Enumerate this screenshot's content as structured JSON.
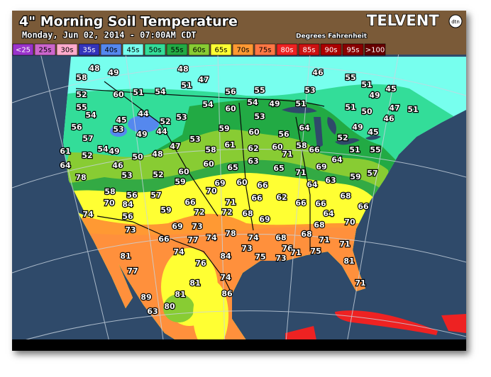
{
  "header": {
    "title": "4\" Morning Soil Temperature",
    "subtitle": "Monday, Jun 02, 2014 - 07:00AM CDT",
    "units": "Degrees Fahrenheit",
    "brand": "TELVENT",
    "brand_badge": "dtn"
  },
  "legend": [
    {
      "label": "<25",
      "color": "#9a33cc"
    },
    {
      "label": "25s",
      "color": "#cc66cc"
    },
    {
      "label": "30s",
      "color": "#ffaacc"
    },
    {
      "label": "35s",
      "color": "#3333bb"
    },
    {
      "label": "40s",
      "color": "#5588ee"
    },
    {
      "label": "45s",
      "color": "#77ffee"
    },
    {
      "label": "50s",
      "color": "#33dd99"
    },
    {
      "label": "55s",
      "color": "#22aa44"
    },
    {
      "label": "60s",
      "color": "#88cc33"
    },
    {
      "label": "65s",
      "color": "#ffff33"
    },
    {
      "label": "70s",
      "color": "#ff9933"
    },
    {
      "label": "75s",
      "color": "#ff7744"
    },
    {
      "label": "80s",
      "color": "#ee2222"
    },
    {
      "label": "85s",
      "color": "#cc1111"
    },
    {
      "label": "90s",
      "color": "#aa0000"
    },
    {
      "label": "95s",
      "color": "#880000"
    },
    {
      "label": ">100",
      "color": "#660000"
    }
  ],
  "readings": [
    48,
    49,
    48,
    47,
    51,
    46,
    55,
    51,
    53,
    56,
    55,
    49,
    45,
    54,
    51,
    60,
    58,
    52,
    55,
    54,
    54,
    60,
    54,
    49,
    51,
    51,
    50,
    47,
    51,
    44,
    52,
    53,
    45,
    53,
    44,
    49,
    56,
    59,
    60,
    56,
    64,
    53,
    46,
    49,
    52,
    45,
    53,
    57,
    54,
    49,
    50,
    48,
    47,
    58,
    61,
    62,
    60,
    71,
    58,
    66,
    51,
    55,
    61,
    52,
    64,
    46,
    53,
    52,
    60,
    60,
    65,
    63,
    65,
    71,
    69,
    64,
    59,
    57,
    78,
    59,
    70,
    69,
    60,
    66,
    64,
    63,
    68,
    66,
    58,
    70,
    56,
    57,
    66,
    71,
    66,
    62,
    66,
    66,
    64,
    74,
    84,
    56,
    59,
    72,
    72,
    68,
    69,
    73,
    69,
    73,
    78,
    74,
    68,
    68,
    68,
    70,
    66,
    77,
    74,
    71,
    71,
    73,
    75,
    76,
    73,
    75,
    71,
    74,
    84,
    81,
    76,
    81,
    77,
    74,
    81,
    71,
    81,
    86,
    89,
    63,
    80
  ]
}
